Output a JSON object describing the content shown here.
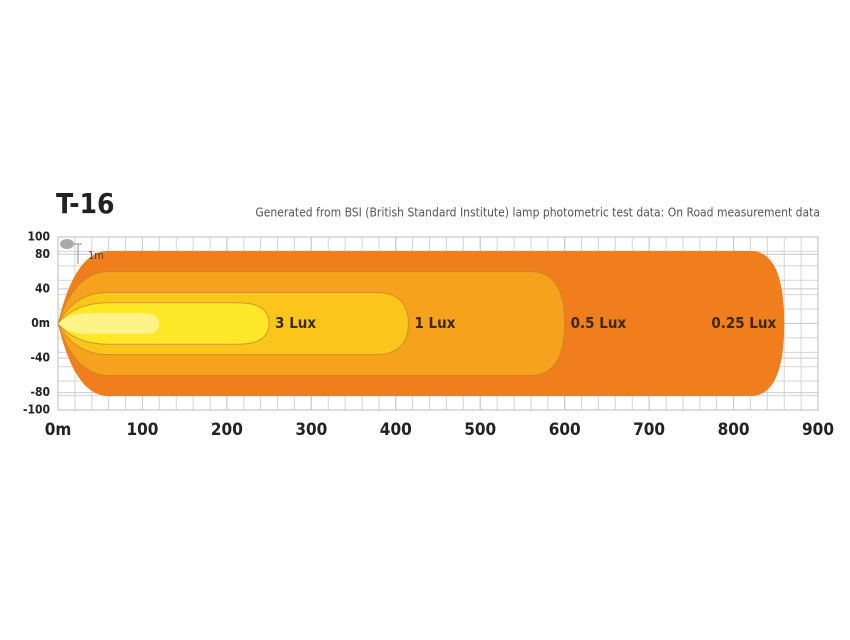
{
  "chart_data": {
    "type": "beam",
    "title": "T-16",
    "subtitle": "Generated from BSI (British Standard Institute) lamp photometric test data: On Road measurement data",
    "annotation": "1m",
    "xlim": [
      0,
      900
    ],
    "ylim": [
      -100,
      100
    ],
    "xticks": [
      {
        "value": 0,
        "label": "0m"
      },
      100,
      200,
      300,
      400,
      500,
      600,
      700,
      800,
      900
    ],
    "yticks": [
      100,
      80,
      40,
      {
        "value": 0,
        "label": "0m"
      },
      -40,
      -80,
      -100
    ],
    "grid": true,
    "series": [
      {
        "name": "3 Lux",
        "color": "#fde726",
        "reach": 250,
        "half_width": 24
      },
      {
        "name": "1 Lux",
        "color": "#fbc51c",
        "reach": 415,
        "half_width": 36
      },
      {
        "name": "0.5 Lux",
        "color": "#f7a21d",
        "reach": 600,
        "half_width": 60
      },
      {
        "name": "0.25 Lux",
        "color": "#f07e1d",
        "reach": 860,
        "half_width": 84
      }
    ]
  }
}
